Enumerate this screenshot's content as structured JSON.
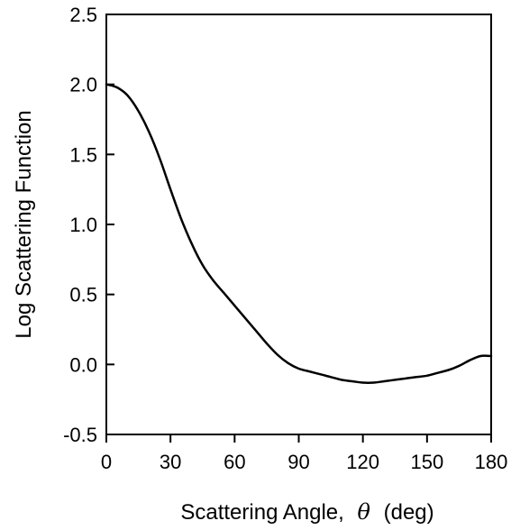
{
  "chart_data": {
    "type": "line",
    "title": "",
    "xlabel_prefix": "Scattering Angle,",
    "xlabel_symbol": "θ",
    "xlabel_suffix": "(deg)",
    "ylabel": "Log Scattering Function",
    "xlim": [
      0,
      180
    ],
    "ylim": [
      -0.5,
      2.5
    ],
    "xticks": [
      0,
      30,
      60,
      90,
      120,
      150,
      180
    ],
    "yticks": [
      -0.5,
      0.0,
      0.5,
      1.0,
      1.5,
      2.0,
      2.5
    ],
    "xtick_labels": [
      "0",
      "30",
      "60",
      "90",
      "120",
      "150",
      "180"
    ],
    "ytick_labels": [
      "-0.5",
      "0.0",
      "0.5",
      "1.0",
      "1.5",
      "2.0",
      "2.5"
    ],
    "grid": false,
    "line_color": "#000000",
    "series": [
      {
        "x": [
          0,
          3,
          6,
          10,
          15,
          20,
          25,
          30,
          35,
          40,
          45,
          50,
          55,
          60,
          65,
          70,
          75,
          80,
          85,
          90,
          95,
          100,
          105,
          110,
          115,
          120,
          125,
          130,
          135,
          140,
          145,
          150,
          155,
          160,
          165,
          170,
          175,
          180
        ],
        "y": [
          2.0,
          1.99,
          1.97,
          1.92,
          1.81,
          1.66,
          1.47,
          1.25,
          1.04,
          0.86,
          0.71,
          0.6,
          0.51,
          0.42,
          0.33,
          0.24,
          0.15,
          0.07,
          0.01,
          -0.03,
          -0.05,
          -0.07,
          -0.09,
          -0.11,
          -0.12,
          -0.13,
          -0.13,
          -0.12,
          -0.11,
          -0.1,
          -0.09,
          -0.08,
          -0.06,
          -0.04,
          -0.01,
          0.03,
          0.06,
          0.06
        ]
      }
    ]
  }
}
